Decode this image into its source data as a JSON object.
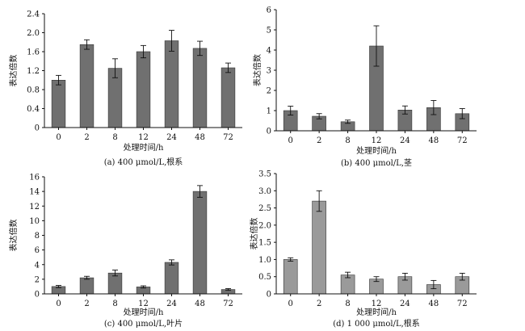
{
  "chart_data": [
    {
      "type": "bar",
      "caption": "(a) 400 μmol/L,根系",
      "xlabel": "处理时间/h",
      "ylabel": "表达倍数",
      "categories": [
        "0",
        "2",
        "8",
        "12",
        "24",
        "48",
        "72"
      ],
      "values": [
        1.0,
        1.75,
        1.25,
        1.6,
        1.83,
        1.67,
        1.26
      ],
      "errors": [
        0.1,
        0.1,
        0.2,
        0.13,
        0.22,
        0.15,
        0.1
      ],
      "ylim": [
        0,
        2.4
      ],
      "yticks": [
        "0",
        "0.4",
        "0.8",
        "1.2",
        "1.6",
        "2.0",
        "2.4"
      ],
      "bar_color": "#707070"
    },
    {
      "type": "bar",
      "caption": "(b) 400 μmol/L,茎",
      "xlabel": "处理时间/h",
      "ylabel": "表达倍数",
      "categories": [
        "0",
        "2",
        "8",
        "12",
        "24",
        "48",
        "72"
      ],
      "values": [
        1.0,
        0.72,
        0.45,
        4.2,
        1.03,
        1.15,
        0.85
      ],
      "errors": [
        0.22,
        0.13,
        0.08,
        1.0,
        0.2,
        0.35,
        0.25
      ],
      "ylim": [
        0,
        6
      ],
      "yticks": [
        "0",
        "1",
        "2",
        "3",
        "4",
        "5",
        "6"
      ],
      "bar_color": "#707070"
    },
    {
      "type": "bar",
      "caption": "(c) 400 μmol/L,叶片",
      "xlabel": "处理时间/h",
      "ylabel": "表达倍数",
      "categories": [
        "0",
        "2",
        "8",
        "12",
        "24",
        "48",
        "72"
      ],
      "values": [
        1.0,
        2.2,
        2.85,
        0.95,
        4.3,
        14.0,
        0.6
      ],
      "errors": [
        0.15,
        0.2,
        0.4,
        0.15,
        0.35,
        0.8,
        0.12
      ],
      "ylim": [
        0,
        16
      ],
      "yticks": [
        "0",
        "2",
        "4",
        "6",
        "8",
        "10",
        "12",
        "14",
        "16"
      ],
      "bar_color": "#707070"
    },
    {
      "type": "bar",
      "caption": "(d) 1 000 μmol/L,根系",
      "xlabel": "处理时间/h",
      "ylabel": "表达倍数",
      "categories": [
        "0",
        "2",
        "8",
        "12",
        "24",
        "48",
        "72"
      ],
      "values": [
        1.0,
        2.7,
        0.55,
        0.43,
        0.5,
        0.27,
        0.5
      ],
      "errors": [
        0.05,
        0.3,
        0.08,
        0.07,
        0.1,
        0.12,
        0.1
      ],
      "ylim": [
        0,
        3.5
      ],
      "yticks": [
        "0",
        "0.5",
        "1.0",
        "1.5",
        "2.0",
        "2.5",
        "3.0",
        "3.5"
      ],
      "bar_color": "#9a9a9a"
    }
  ]
}
